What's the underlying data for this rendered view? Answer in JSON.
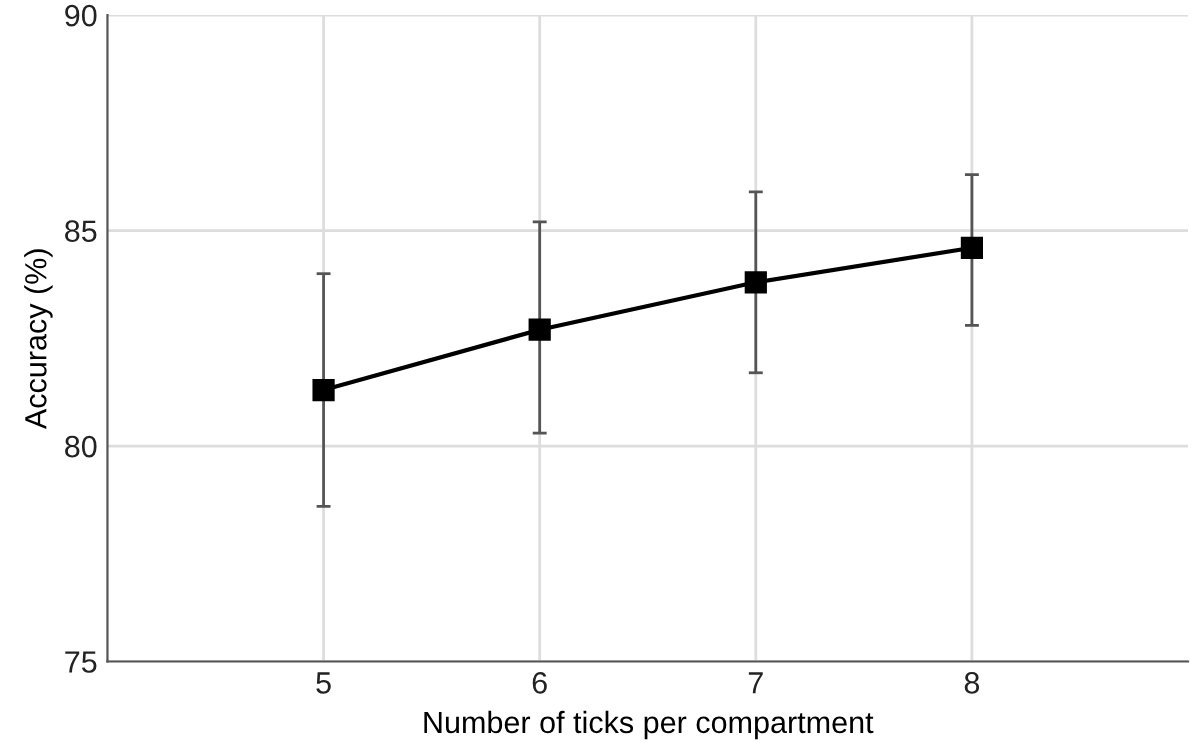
{
  "chart_data": {
    "type": "line",
    "xlabel": "Number of ticks per compartment",
    "ylabel": "Accuracy (%)",
    "categories": [
      "5",
      "6",
      "7",
      "8"
    ],
    "series": [
      {
        "color": "#000000",
        "values": [
          81.3,
          82.7,
          83.8,
          84.6
        ],
        "errors": [
          [
            78.6,
            84.0
          ],
          [
            80.3,
            85.2
          ],
          [
            81.7,
            85.9
          ],
          [
            82.8,
            86.3
          ]
        ]
      }
    ],
    "ylim": [
      75,
      90
    ],
    "yticks": [
      75,
      80,
      85,
      90
    ],
    "grid": true,
    "marker": "square",
    "line_style": "solid"
  }
}
